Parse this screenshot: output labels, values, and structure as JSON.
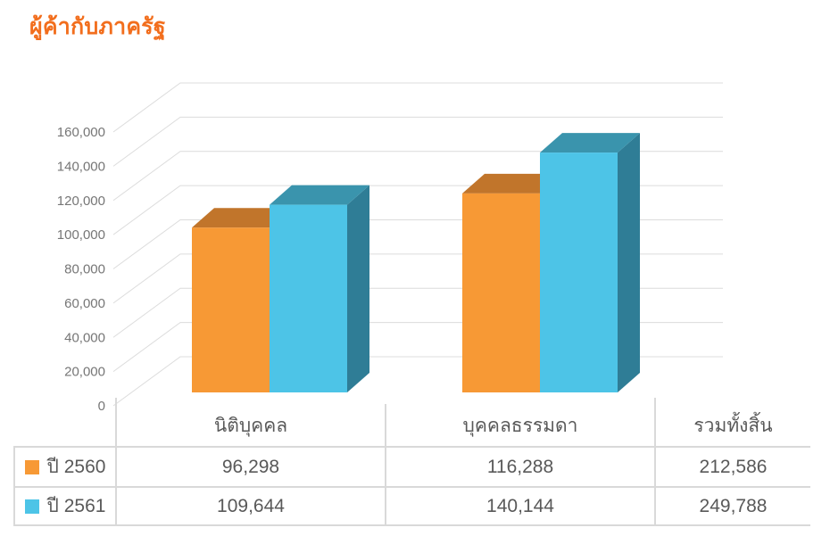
{
  "title": "ผู้ค้ากับภาครัฐ",
  "colors": {
    "title": "#F26E1D",
    "gridline": "#DCDCDC",
    "table_border": "#D9D9D9",
    "tick_text": "#767676",
    "table_text": "#595959",
    "series1": "#F79935",
    "series2": "#4DC4E7"
  },
  "chart_data": {
    "type": "bar",
    "style": "3d-clustered-column",
    "title": "ผู้ค้ากับภาครัฐ",
    "categories": [
      "นิติบุคคล",
      "บุคคลธรรมดา"
    ],
    "series": [
      {
        "name": "ปี 2560",
        "values": [
          96298,
          116288
        ],
        "total": 212586,
        "color": "#F79935",
        "face_colors": {
          "front": "#F79935",
          "top": "#C1752B",
          "side": "#C1752B"
        }
      },
      {
        "name": "ปี 2561",
        "values": [
          109644,
          140144
        ],
        "total": 249788,
        "color": "#4DC4E7",
        "face_colors": {
          "front": "#4DC4E7",
          "top": "#3A94AD",
          "side": "#2F7D96"
        }
      }
    ],
    "ylim": [
      0,
      160000
    ],
    "ytick_step": 20000,
    "y_tick_labels": [
      "0",
      "20,000",
      "40,000",
      "60,000",
      "80,000",
      "100,000",
      "120,000",
      "140,000",
      "160,000"
    ],
    "grid": true,
    "legend_position": "table-left"
  },
  "table": {
    "columns": [
      "นิติบุคคล",
      "บุคคลธรรมดา",
      "รวมทั้งสิ้น"
    ],
    "rows": [
      {
        "label": "ปี 2560",
        "swatch_color": "#F79935",
        "values": [
          "96,298",
          "116,288",
          "212,586"
        ]
      },
      {
        "label": "ปี 2561",
        "swatch_color": "#4DC4E7",
        "values": [
          "109,644",
          "140,144",
          "249,788"
        ]
      }
    ]
  }
}
